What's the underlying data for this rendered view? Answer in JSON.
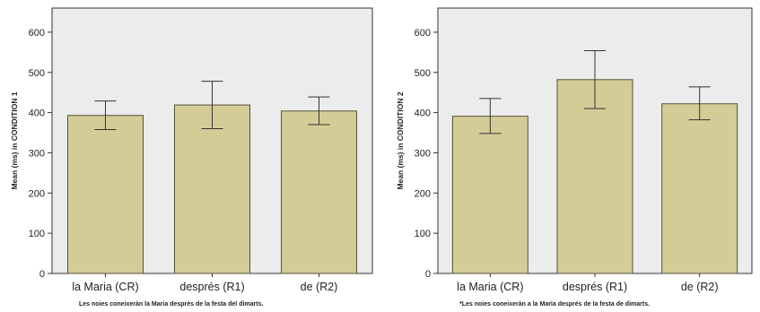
{
  "colors": {
    "plot_bg": "#ececec",
    "bar_fill": "#d4cc96",
    "bar_stroke": "#55513a",
    "axis": "#333333",
    "errorbar": "#333333",
    "text": "#222222"
  },
  "chart_data": [
    {
      "type": "bar",
      "title": "",
      "xlabel": "",
      "ylabel": "Mean (ms) in CONDITION 1",
      "categories": [
        "la Maria (CR)",
        "després (R1)",
        "de (R2)"
      ],
      "values": [
        393,
        419,
        404
      ],
      "error_low": [
        358,
        360,
        370
      ],
      "error_high": [
        429,
        478,
        439
      ],
      "ylim": [
        0,
        660
      ],
      "yticks": [
        0,
        100,
        200,
        300,
        400,
        500,
        600
      ],
      "grid": false,
      "caption": "Les noies coneixeràn la Maria després de la festa del dimarts."
    },
    {
      "type": "bar",
      "title": "",
      "xlabel": "",
      "ylabel": "Mean (ms) in CONDITION 2",
      "categories": [
        "la Maria (CR)",
        "després (R1)",
        "de (R2)"
      ],
      "values": [
        391,
        482,
        422
      ],
      "error_low": [
        348,
        410,
        382
      ],
      "error_high": [
        435,
        554,
        464
      ],
      "ylim": [
        0,
        660
      ],
      "yticks": [
        0,
        100,
        200,
        300,
        400,
        500,
        600
      ],
      "grid": false,
      "caption": "*Les noies coneixeràn a la Maria després de la festa de dimarts."
    }
  ]
}
